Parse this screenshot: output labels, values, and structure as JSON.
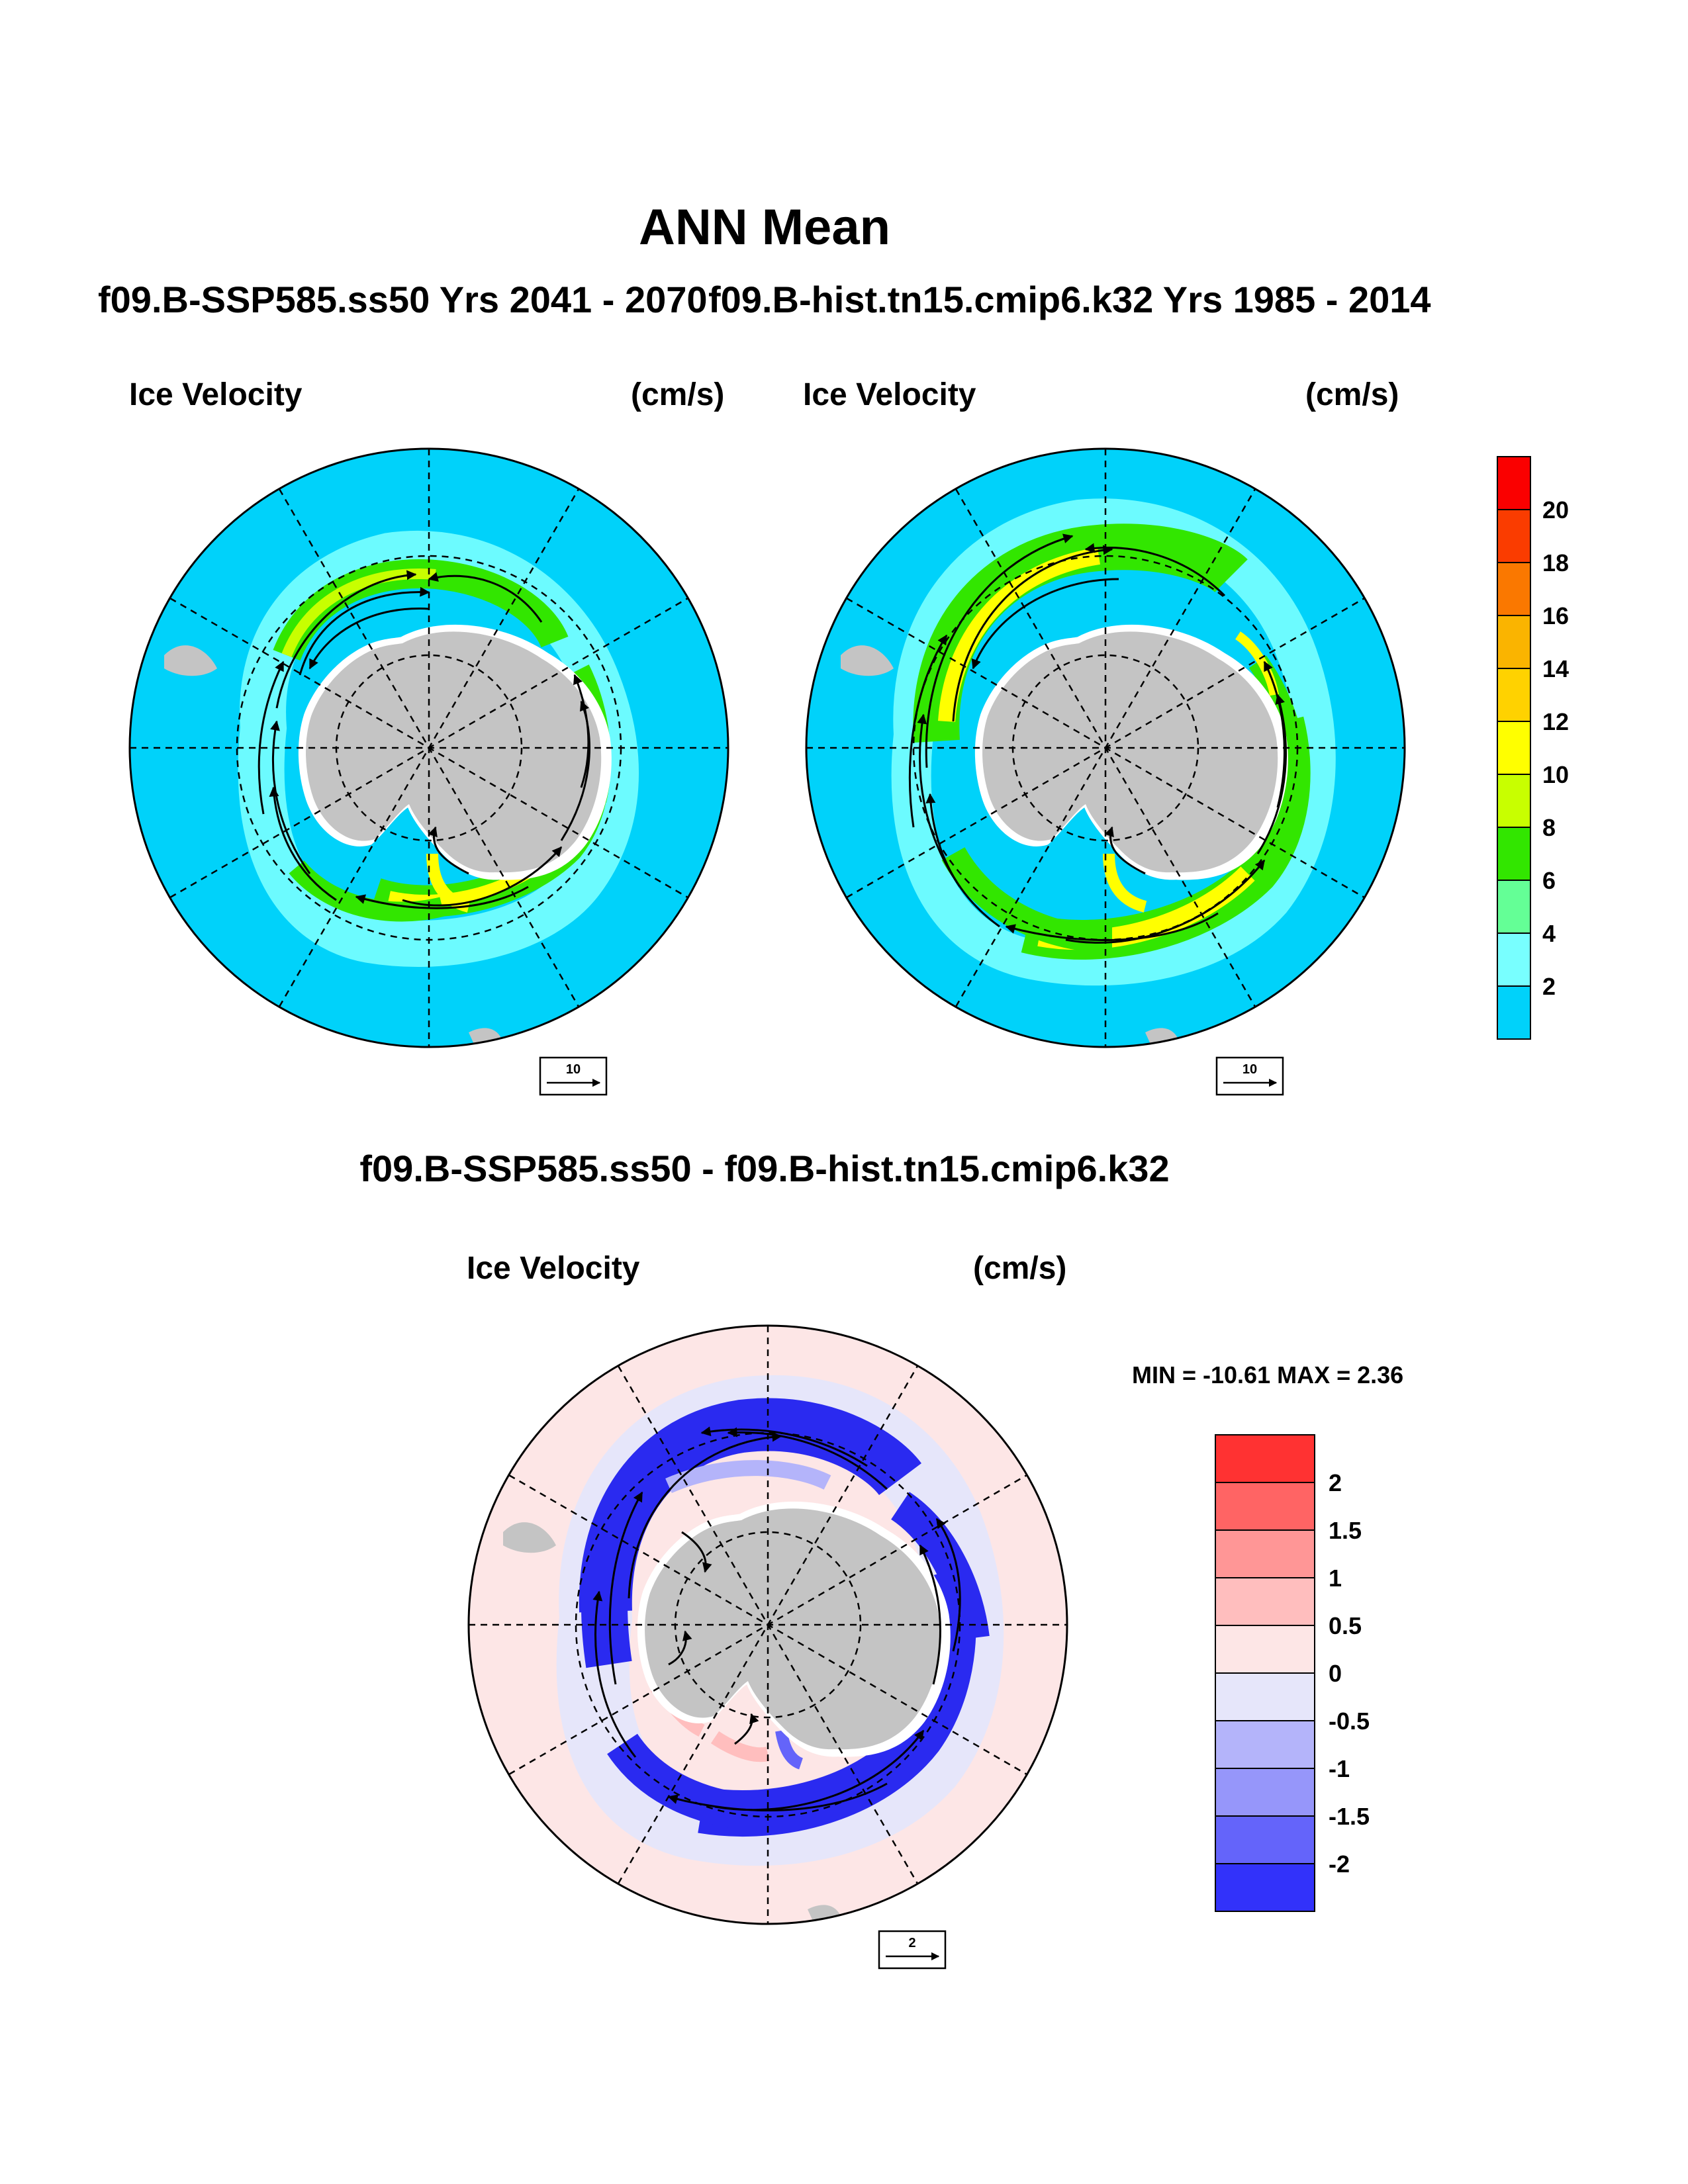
{
  "figure": {
    "title": "ANN Mean",
    "diff_title": "f09.B-SSP585.ss50 - f09.B-hist.tn15.cmip6.k32",
    "min_max_text": "MIN = -10.61 MAX =   2.36"
  },
  "colors": {
    "ocean_fill": "#00d2fa",
    "land": "#c4c4c4",
    "diff_background": "#fde6e6",
    "diff_negative": "#2a2af0"
  },
  "chart_data": [
    {
      "type": "heatmap",
      "projection": "south-polar-stereographic",
      "title": "f09.B-SSP585.ss50  Yrs 2041 - 2070",
      "left_label": "Ice Velocity",
      "right_label": "(cm/s)",
      "reference_vector": "10",
      "dominant_speed_cm_s": [
        6,
        10
      ]
    },
    {
      "type": "heatmap",
      "projection": "south-polar-stereographic",
      "title": "f09.B-hist.tn15.cmip6.k32  Yrs 1985 - 2014",
      "left_label": "Ice Velocity",
      "right_label": "(cm/s)",
      "reference_vector": "10",
      "dominant_speed_cm_s": [
        8,
        12
      ]
    },
    {
      "type": "heatmap",
      "projection": "south-polar-stereographic",
      "title": "f09.B-SSP585.ss50 - f09.B-hist.tn15.cmip6.k32",
      "left_label": "Ice Velocity",
      "right_label": "(cm/s)",
      "reference_vector": "2",
      "min": -10.61,
      "max": 2.36
    }
  ],
  "colorbars": {
    "top": {
      "labels": [
        "20",
        "18",
        "16",
        "14",
        "12",
        "10",
        "8",
        "6",
        "4",
        "2"
      ],
      "colors": [
        "#fa0000",
        "#fa3c00",
        "#fa7800",
        "#fab400",
        "#ffd200",
        "#ffff00",
        "#c8ff00",
        "#32e600",
        "#64ff96",
        "#78ffff",
        "#00d2fa"
      ]
    },
    "diff": {
      "labels": [
        "2",
        "1.5",
        "1",
        "0.5",
        "0",
        "-0.5",
        "-1",
        "-1.5",
        "-2"
      ],
      "colors": [
        "#ff3232",
        "#ff6464",
        "#ff9696",
        "#ffbebe",
        "#fde6e6",
        "#e6e6fa",
        "#b4b4fa",
        "#9696fa",
        "#6464fa",
        "#3232fa"
      ]
    }
  }
}
